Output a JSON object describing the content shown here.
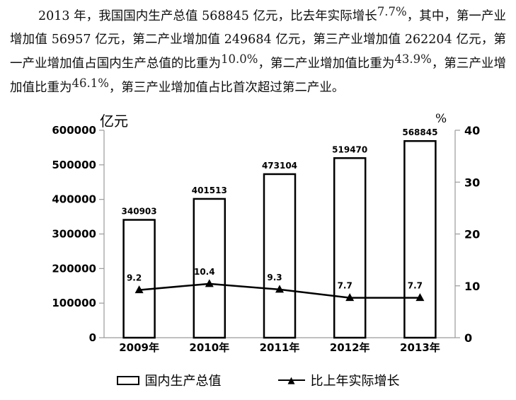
{
  "paragraph": {
    "segments": [
      {
        "text": "2013 年，我国国内生产总值 568845 亿元，比去年实际增长",
        "sup": false
      },
      {
        "text": "7.7%",
        "sup": true
      },
      {
        "text": "，其中，第一产业增加值 56957 亿元，第二产业增加值 249684 亿元，第三产业增加值 262204 亿元，第一产业增加值占国内生产总值的比重为",
        "sup": false
      },
      {
        "text": "10.0%",
        "sup": true
      },
      {
        "text": "，第二产业增加值比重为",
        "sup": false
      },
      {
        "text": "43.9%",
        "sup": true
      },
      {
        "text": "，第三产业增加值比重为",
        "sup": false
      },
      {
        "text": "46.1%",
        "sup": true
      },
      {
        "text": "，第三产业增加值占比首次超过第二产业。",
        "sup": false
      }
    ]
  },
  "chart_data": {
    "type": "bar+line",
    "categories": [
      "2009年",
      "2010年",
      "2011年",
      "2012年",
      "2013年"
    ],
    "series": [
      {
        "name": "国内生产总值",
        "type": "bar",
        "axis": "left",
        "values": [
          340903,
          401513,
          473104,
          519470,
          568845
        ]
      },
      {
        "name": "比上年实际增长",
        "type": "line",
        "axis": "right",
        "values": [
          9.2,
          10.4,
          9.3,
          7.7,
          7.7
        ]
      }
    ],
    "left_axis": {
      "unit": "亿元",
      "min": 0,
      "max": 600000,
      "step": 100000,
      "ticks": [
        "0",
        "100000",
        "200000",
        "300000",
        "400000",
        "500000",
        "600000"
      ]
    },
    "right_axis": {
      "unit": "%",
      "min": 0,
      "max": 40,
      "step": 10,
      "ticks": [
        "0",
        "10",
        "20",
        "30",
        "40"
      ]
    },
    "legend": {
      "bar_label": "国内生产总值",
      "line_label": "比上年实际增长",
      "marker_glyph": "▲"
    },
    "colors": {
      "bar_fill": "#ffffff",
      "ink": "#000000",
      "axis_line": "#9a9a9a"
    },
    "grid": false,
    "legend_position": "bottom"
  }
}
